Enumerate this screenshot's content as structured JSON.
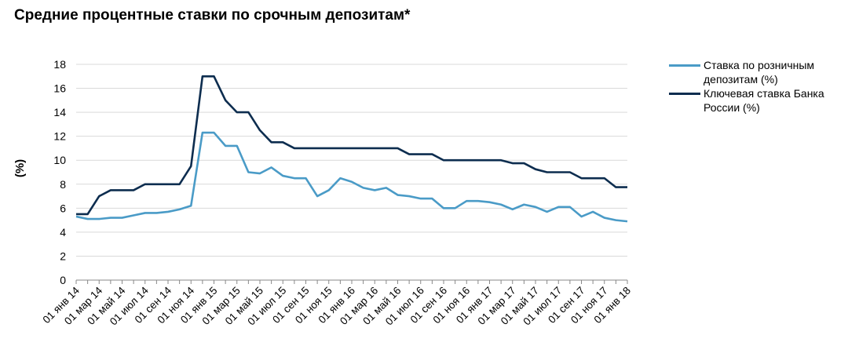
{
  "chart_data": {
    "type": "line",
    "title": "Средние процентные ставки по срочным депозитам*",
    "ylabel": "(%)",
    "xlabel": "",
    "ylim": [
      0,
      18
    ],
    "yticks": [
      "0",
      "2",
      "4",
      "6",
      "8",
      "10",
      "12",
      "14",
      "16",
      "18"
    ],
    "grid": true,
    "legend_position": "right",
    "x_tick_labels": [
      "01 янв 14",
      "01 мар 14",
      "01 май 14",
      "01 июл 14",
      "01 сен 14",
      "01 ноя 14",
      "01 янв 15",
      "01 мар 15",
      "01 май 15",
      "01 июл 15",
      "01 сен 15",
      "01 ноя 15",
      "01 янв 16",
      "01 мар 16",
      "01 май 16",
      "01 июл 16",
      "01 сен 16",
      "01 ноя 16",
      "01 янв 17",
      "01 мар 17",
      "01 май 17",
      "01 июл 17",
      "01 сен 17",
      "01 ноя 17",
      "01 янв 18"
    ],
    "series": [
      {
        "name": "Ставка по розничным депозитам (%)",
        "color": "#4a9bc7",
        "values": [
          5.3,
          5.1,
          5.1,
          5.2,
          5.2,
          5.4,
          5.6,
          5.6,
          5.7,
          5.9,
          6.2,
          12.3,
          12.3,
          11.2,
          11.2,
          9.0,
          8.9,
          9.4,
          8.7,
          8.5,
          8.5,
          7.0,
          7.5,
          8.5,
          8.2,
          7.7,
          7.5,
          7.7,
          7.1,
          7.0,
          6.8,
          6.8,
          6.0,
          6.0,
          6.6,
          6.6,
          6.5,
          6.3,
          5.9,
          6.3,
          6.1,
          5.7,
          6.1,
          6.1,
          5.3,
          5.7,
          5.2,
          5.0,
          4.9
        ]
      },
      {
        "name": "Ключевая ставка Банка России (%)",
        "color": "#0d2d4f",
        "values": [
          5.5,
          5.5,
          7.0,
          7.5,
          7.5,
          7.5,
          8.0,
          8.0,
          8.0,
          8.0,
          9.5,
          17.0,
          17.0,
          15.0,
          14.0,
          14.0,
          12.5,
          11.5,
          11.5,
          11.0,
          11.0,
          11.0,
          11.0,
          11.0,
          11.0,
          11.0,
          11.0,
          11.0,
          11.0,
          10.5,
          10.5,
          10.5,
          10.0,
          10.0,
          10.0,
          10.0,
          10.0,
          10.0,
          9.75,
          9.75,
          9.25,
          9.0,
          9.0,
          9.0,
          8.5,
          8.5,
          8.5,
          7.75,
          7.75
        ]
      }
    ]
  }
}
